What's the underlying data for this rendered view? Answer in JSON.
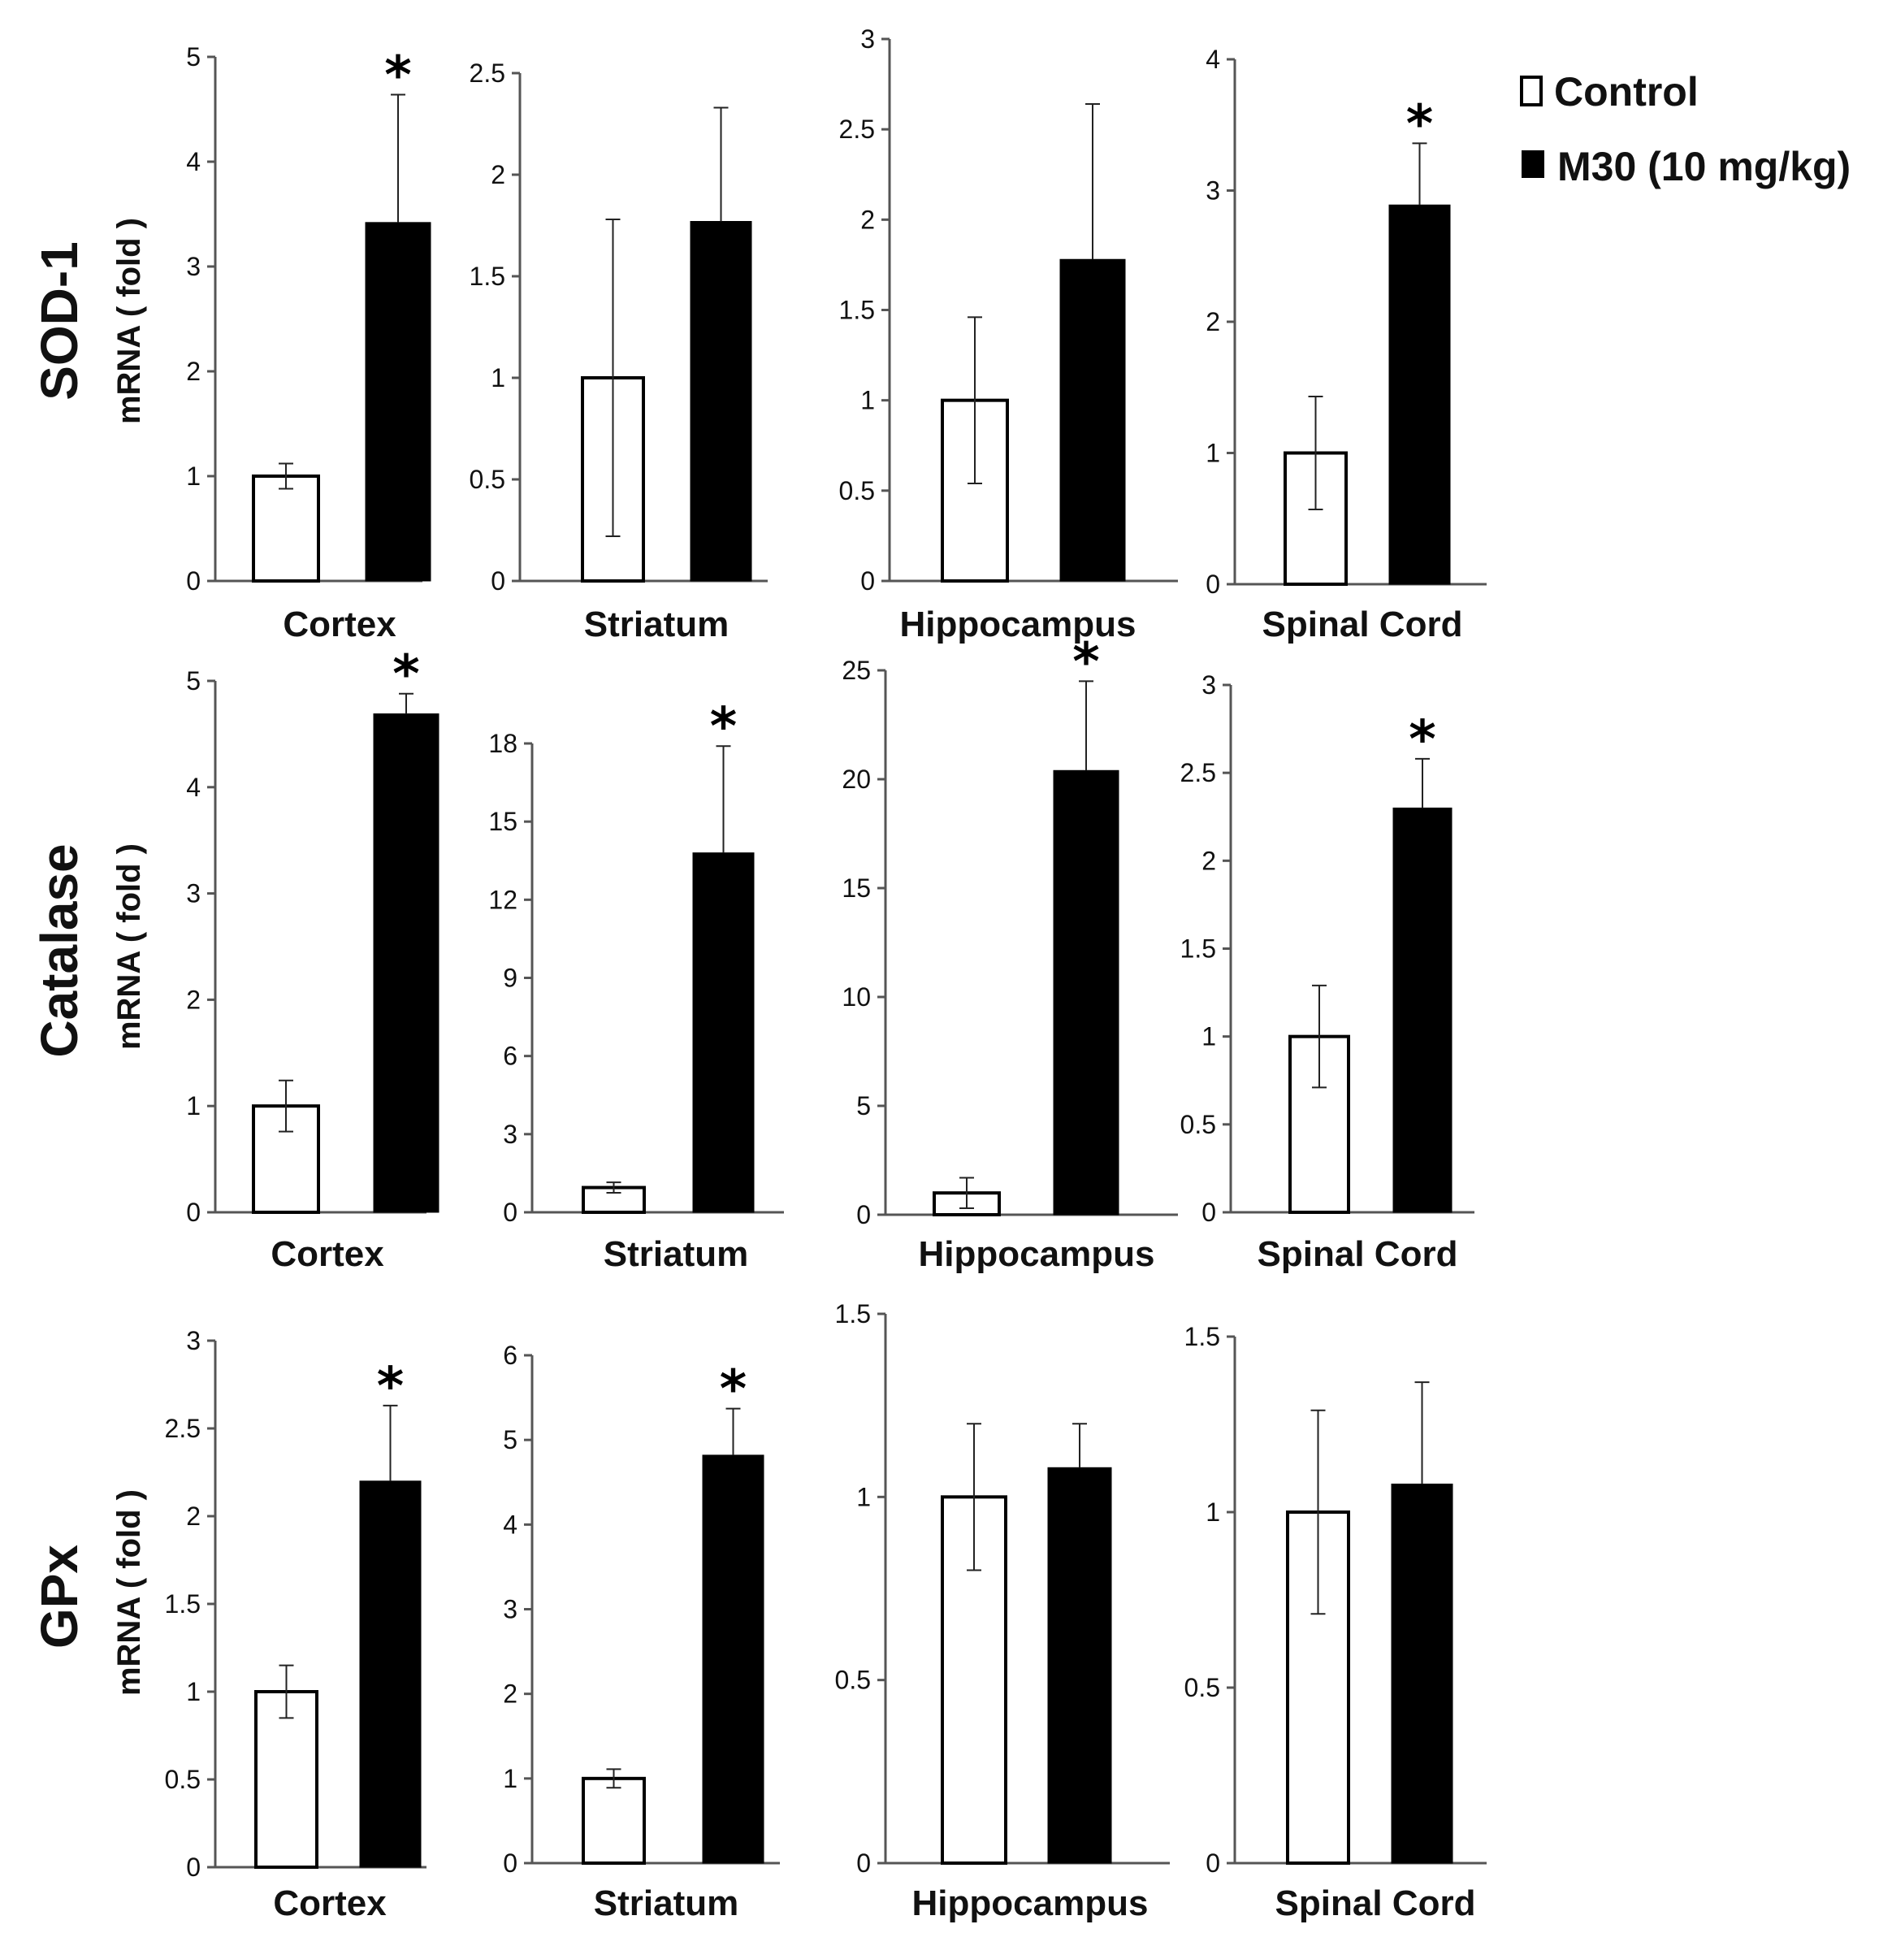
{
  "legend": {
    "control_label": "Control",
    "treatment_label": "M30 (10 mg/kg)",
    "control_color": "#ffffff",
    "treatment_color": "#000000"
  },
  "y_axis_label": "mRNA ( fold )",
  "significance_marker": "*",
  "chart_data": [
    {
      "type": "bar",
      "gene": "SOD-1",
      "region": "Cortex",
      "categories": [
        "Control",
        "M30 (10 mg/kg)"
      ],
      "values": [
        1.0,
        3.42
      ],
      "errors": [
        0.12,
        1.22
      ],
      "significant": [
        false,
        true
      ],
      "ylim": [
        0,
        5
      ],
      "yticks": [
        "0",
        "1",
        "2",
        "3",
        "4",
        "5"
      ]
    },
    {
      "type": "bar",
      "gene": "SOD-1",
      "region": "Striatum",
      "categories": [
        "Control",
        "M30 (10 mg/kg)"
      ],
      "values": [
        1.0,
        1.77
      ],
      "errors": [
        0.78,
        0.56
      ],
      "significant": [
        false,
        false
      ],
      "ylim": [
        0,
        2.5
      ],
      "yticks": [
        "0",
        "0.5",
        "1",
        "1.5",
        "2",
        "2.5"
      ]
    },
    {
      "type": "bar",
      "gene": "SOD-1",
      "region": "Hippocampus",
      "categories": [
        "Control",
        "M30 (10 mg/kg)"
      ],
      "values": [
        1.0,
        1.78
      ],
      "errors": [
        0.46,
        0.86
      ],
      "significant": [
        false,
        false
      ],
      "ylim": [
        0,
        3
      ],
      "yticks": [
        "0",
        "0.5",
        "1",
        "1.5",
        "2",
        "2.5",
        "3"
      ]
    },
    {
      "type": "bar",
      "gene": "SOD-1",
      "region": "Spinal Cord",
      "categories": [
        "Control",
        "M30 (10 mg/kg)"
      ],
      "values": [
        1.0,
        2.89
      ],
      "errors": [
        0.43,
        0.47
      ],
      "significant": [
        false,
        true
      ],
      "ylim": [
        0,
        4
      ],
      "yticks": [
        "0",
        "1",
        "2",
        "3",
        "4"
      ]
    },
    {
      "type": "bar",
      "gene": "Catalase",
      "region": "Cortex",
      "categories": [
        "Control",
        "M30 (10 mg/kg)"
      ],
      "values": [
        1.0,
        4.69
      ],
      "errors": [
        0.24,
        0.19
      ],
      "significant": [
        false,
        true
      ],
      "ylim": [
        0,
        5
      ],
      "yticks": [
        "0",
        "1",
        "2",
        "3",
        "4",
        "5"
      ]
    },
    {
      "type": "bar",
      "gene": "Catalase",
      "region": "Striatum",
      "categories": [
        "Control",
        "M30 (10 mg/kg)"
      ],
      "values": [
        0.95,
        13.8
      ],
      "errors": [
        0.2,
        4.1
      ],
      "significant": [
        false,
        true
      ],
      "ylim": [
        0,
        18
      ],
      "yticks": [
        "0",
        "3",
        "6",
        "9",
        "12",
        "15",
        "18"
      ]
    },
    {
      "type": "bar",
      "gene": "Catalase",
      "region": "Hippocampus",
      "categories": [
        "Control",
        "M30 (10 mg/kg)"
      ],
      "values": [
        1.0,
        20.4
      ],
      "errors": [
        0.7,
        4.1
      ],
      "significant": [
        false,
        true
      ],
      "ylim": [
        0,
        25
      ],
      "yticks": [
        "0",
        "5",
        "10",
        "15",
        "20",
        "25"
      ]
    },
    {
      "type": "bar",
      "gene": "Catalase",
      "region": "Spinal Cord",
      "categories": [
        "Control",
        "M30 (10 mg/kg)"
      ],
      "values": [
        1.0,
        2.3
      ],
      "errors": [
        0.29,
        0.28
      ],
      "significant": [
        false,
        true
      ],
      "ylim": [
        0,
        3
      ],
      "yticks": [
        "0",
        "0.5",
        "1",
        "1.5",
        "2",
        "2.5",
        "3"
      ]
    },
    {
      "type": "bar",
      "gene": "GPx",
      "region": "Cortex",
      "categories": [
        "Control",
        "M30 (10 mg/kg)"
      ],
      "values": [
        1.0,
        2.2
      ],
      "errors": [
        0.15,
        0.43
      ],
      "significant": [
        false,
        true
      ],
      "ylim": [
        0,
        3
      ],
      "yticks": [
        "0",
        "0.5",
        "1",
        "1.5",
        "2",
        "2.5",
        "3"
      ]
    },
    {
      "type": "bar",
      "gene": "GPx",
      "region": "Striatum",
      "categories": [
        "Control",
        "M30 (10 mg/kg)"
      ],
      "values": [
        1.0,
        4.82
      ],
      "errors": [
        0.11,
        0.55
      ],
      "significant": [
        false,
        true
      ],
      "ylim": [
        0,
        6
      ],
      "yticks": [
        "0",
        "1",
        "2",
        "3",
        "4",
        "5",
        "6"
      ]
    },
    {
      "type": "bar",
      "gene": "GPx",
      "region": "Hippocampus",
      "categories": [
        "Control",
        "M30 (10 mg/kg)"
      ],
      "values": [
        1.0,
        1.08
      ],
      "errors": [
        0.2,
        0.12
      ],
      "significant": [
        false,
        false
      ],
      "ylim": [
        0,
        1.5
      ],
      "yticks": [
        "0",
        "0.5",
        "1",
        "1.5"
      ]
    },
    {
      "type": "bar",
      "gene": "GPx",
      "region": "Spinal Cord",
      "categories": [
        "Control",
        "M30 (10 mg/kg)"
      ],
      "values": [
        1.0,
        1.08
      ],
      "errors": [
        0.29,
        0.29
      ],
      "significant": [
        false,
        false
      ],
      "ylim": [
        0,
        1.5
      ],
      "yticks": [
        "0",
        "0.5",
        "1",
        "1.5"
      ]
    }
  ]
}
